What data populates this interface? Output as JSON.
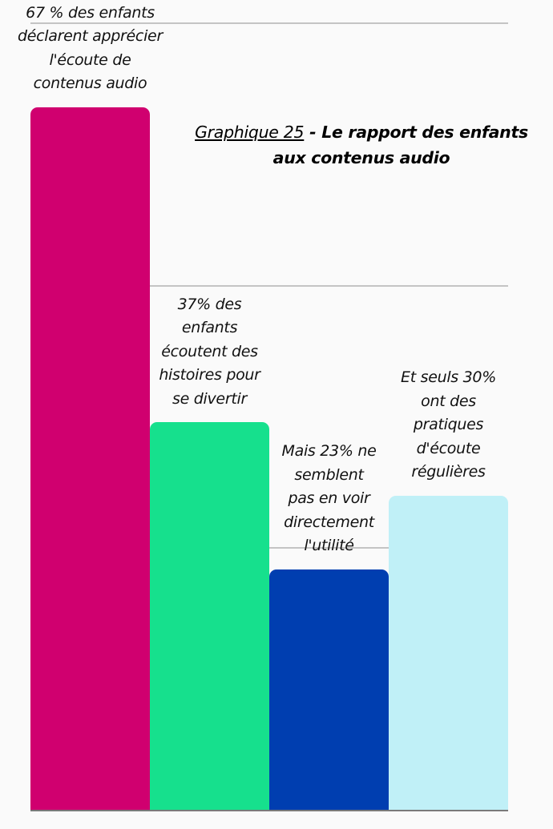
{
  "chart_data": {
    "type": "bar",
    "title": "Graphique 25 - Le rapport des enfants aux contenus audio",
    "title_parts": {
      "ref": "Graphique 25",
      "sep": " -  ",
      "line1": "Le rapport des enfants",
      "line2": "aux contenus audio"
    },
    "categories": [
      "67 % des enfants déclarent apprécier l'écoute de contenus audio",
      "37% des enfants écoutent des histoires pour se divertir",
      "Mais 23% ne semblent pas en voir directement l'utilité",
      "Et seuls 30% ont des pratiques d'écoute régulières"
    ],
    "values": [
      67,
      37,
      23,
      30
    ],
    "colors": [
      "#d0006f",
      "#16e08d",
      "#003eb0",
      "#c0f0f7"
    ],
    "labels": [
      "67 % des enfants\ndéclarent apprécier\nl'écoute de\ncontenus audio",
      "37% des\nenfants\nécoutent des\nhistoires pour\nse divertir",
      "Mais 23% ne\nsemblent\npas en voir\ndirectement\nl'utilité",
      "Et seuls 30%\nont des\npratiques\nd'écoute\nrégulières"
    ],
    "xlabel": "",
    "ylabel": "",
    "ylim": [
      0,
      75
    ],
    "gridlines": [
      25,
      50,
      75
    ],
    "grid": true,
    "legend": "none",
    "unit": "%"
  }
}
